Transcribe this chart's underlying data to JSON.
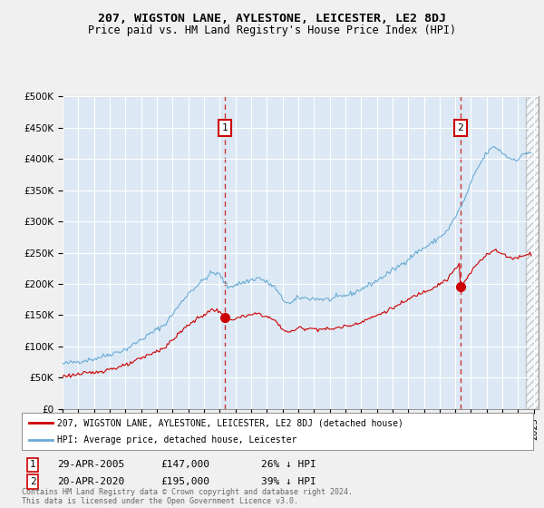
{
  "title": "207, WIGSTON LANE, AYLESTONE, LEICESTER, LE2 8DJ",
  "subtitle": "Price paid vs. HM Land Registry's House Price Index (HPI)",
  "fig_bg_color": "#f0f0f0",
  "plot_bg_color": "#dce9f5",
  "ylim": [
    0,
    500000
  ],
  "yticks": [
    0,
    50000,
    100000,
    150000,
    200000,
    250000,
    300000,
    350000,
    400000,
    450000,
    500000
  ],
  "ytick_labels": [
    "£0",
    "£50K",
    "£100K",
    "£150K",
    "£200K",
    "£250K",
    "£300K",
    "£350K",
    "£400K",
    "£450K",
    "£500K"
  ],
  "xlim_start": 1995.0,
  "xlim_end": 2025.3,
  "hpi_color": "#6aaad4",
  "price_color": "#cc0000",
  "marker1_x": 2005.33,
  "marker1_y": 147000,
  "marker1_label": "1",
  "marker1_date": "29-APR-2005",
  "marker1_price": "£147,000",
  "marker1_hpi": "26% ↓ HPI",
  "marker2_x": 2020.33,
  "marker2_y": 195000,
  "marker2_label": "2",
  "marker2_date": "20-APR-2020",
  "marker2_price": "£195,000",
  "marker2_hpi": "39% ↓ HPI",
  "legend_line1": "207, WIGSTON LANE, AYLESTONE, LEICESTER, LE2 8DJ (detached house)",
  "legend_line2": "HPI: Average price, detached house, Leicester",
  "footnote": "Contains HM Land Registry data © Crown copyright and database right 2024.\nThis data is licensed under the Open Government Licence v3.0."
}
